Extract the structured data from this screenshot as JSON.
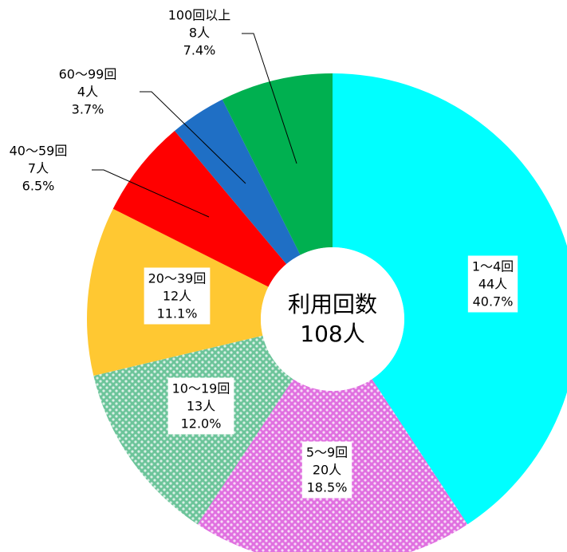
{
  "chart_data": {
    "type": "donut",
    "center_label": "利用回数",
    "total_label": "108人",
    "categories": [
      "1〜4回",
      "5〜9回",
      "10〜19回",
      "20〜39回",
      "40〜59回",
      "60〜99回",
      "100回以上"
    ],
    "values": [
      44,
      20,
      13,
      12,
      7,
      4,
      8
    ],
    "value_labels": [
      "44人",
      "20人",
      "13人",
      "12人",
      "7人",
      "4人",
      "8人"
    ],
    "percent_labels": [
      "40.7%",
      "18.5%",
      "12.0%",
      "11.1%",
      "6.5%",
      "3.7%",
      "7.4%"
    ],
    "colors": [
      "#00ffff",
      "#e070e0",
      "#6cc49a",
      "#ffc832",
      "#ff0000",
      "#1f6fc5",
      "#00b050"
    ],
    "dotted": [
      false,
      true,
      true,
      false,
      false,
      false,
      false
    ]
  }
}
